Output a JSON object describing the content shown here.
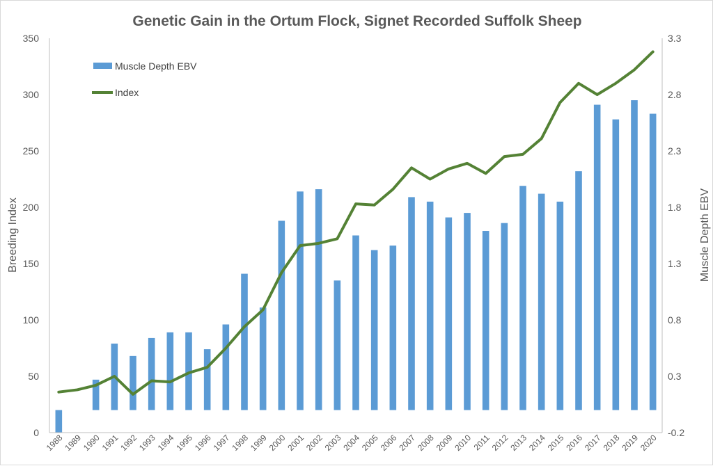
{
  "chart_data": {
    "type": "bar",
    "title": "Genetic Gain in the Ortum Flock, Signet Recorded Suffolk Sheep",
    "xlabel": "",
    "ylabel": "Breeding Index",
    "y2label": "Muscle Depth EBV",
    "categories": [
      "1988",
      "1989",
      "1990",
      "1991",
      "1992",
      "1993",
      "1994",
      "1995",
      "1996",
      "1997",
      "1998",
      "1999",
      "2000",
      "2001",
      "2002",
      "2003",
      "2004",
      "2005",
      "2006",
      "2007",
      "2008",
      "2009",
      "2010",
      "2011",
      "2012",
      "2013",
      "2014",
      "2015",
      "2016",
      "2017",
      "2018",
      "2019",
      "2020"
    ],
    "ylim": [
      0,
      350
    ],
    "yticks": [
      "0",
      "50",
      "100",
      "150",
      "200",
      "250",
      "300",
      "350"
    ],
    "y2lim": [
      -0.2,
      3.3
    ],
    "y2ticks": [
      "-0.2",
      "0.3",
      "0.8",
      "1.3",
      "1.8",
      "2.3",
      "2.8",
      "3.3"
    ],
    "legend_position": "top-left",
    "grid": false,
    "series": [
      {
        "name": "Muscle Depth EBV",
        "type": "bar",
        "axis": "right",
        "color": "#5b9bd5",
        "values": [
          -0.2,
          null,
          0.27,
          0.59,
          0.48,
          0.64,
          0.69,
          0.69,
          0.54,
          0.76,
          1.21,
          0.91,
          1.68,
          1.94,
          1.96,
          1.15,
          1.55,
          1.42,
          1.46,
          1.89,
          1.85,
          1.71,
          1.75,
          1.59,
          1.66,
          1.99,
          1.92,
          1.85,
          2.12,
          2.71,
          2.58,
          2.75,
          2.63
        ]
      },
      {
        "name": "Index",
        "type": "line",
        "axis": "left",
        "color": "#548235",
        "values": [
          36,
          38,
          42,
          50,
          34,
          46,
          45,
          53,
          58,
          75,
          94,
          109,
          142,
          166,
          168,
          172,
          203,
          202,
          216,
          235,
          225,
          234,
          239,
          230,
          245,
          247,
          261,
          293,
          310,
          300,
          310,
          322,
          338
        ]
      }
    ]
  }
}
